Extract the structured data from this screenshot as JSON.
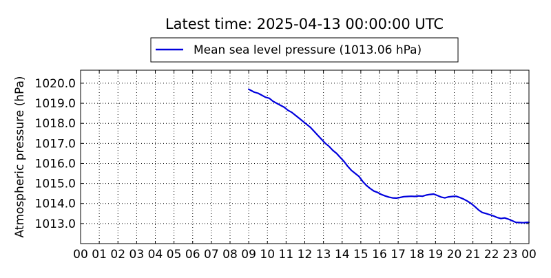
{
  "chart_data": {
    "type": "line",
    "title": "Latest time: 2025-04-13 00:00:00 UTC",
    "xlabel": "",
    "ylabel": "Atmospheric pressure (hPa)",
    "x_tick_labels": [
      "00",
      "01",
      "02",
      "03",
      "04",
      "05",
      "06",
      "07",
      "08",
      "09",
      "10",
      "11",
      "12",
      "13",
      "14",
      "15",
      "16",
      "17",
      "18",
      "19",
      "20",
      "21",
      "22",
      "23",
      "00"
    ],
    "y_ticks": [
      1013.0,
      1014.0,
      1015.0,
      1016.0,
      1017.0,
      1018.0,
      1019.0,
      1020.0
    ],
    "y_tick_labels": [
      "1013.0",
      "1014.0",
      "1015.0",
      "1016.0",
      "1017.0",
      "1018.0",
      "1019.0",
      "1020.0"
    ],
    "xlim": [
      0,
      24
    ],
    "ylim": [
      1012.0,
      1020.65
    ],
    "grid": true,
    "legend_position": "top-center",
    "series": [
      {
        "name": "Mean sea level pressure (1013.06 hPa)",
        "color": "#0000dd",
        "x": [
          9.0,
          9.1,
          9.3,
          9.5,
          9.7,
          9.9,
          10.1,
          10.3,
          10.5,
          10.7,
          10.9,
          11.1,
          11.3,
          11.5,
          11.7,
          11.9,
          12.1,
          12.3,
          12.5,
          12.7,
          12.9,
          13.1,
          13.3,
          13.5,
          13.7,
          13.9,
          14.1,
          14.3,
          14.5,
          14.7,
          14.9,
          15.1,
          15.3,
          15.5,
          15.7,
          15.9,
          16.1,
          16.3,
          16.5,
          16.7,
          16.9,
          17.1,
          17.3,
          17.5,
          17.7,
          17.9,
          18.1,
          18.3,
          18.5,
          18.7,
          18.9,
          19.1,
          19.3,
          19.5,
          19.7,
          19.9,
          20.1,
          20.3,
          20.5,
          20.7,
          20.9,
          21.1,
          21.3,
          21.5,
          21.7,
          21.9,
          22.1,
          22.3,
          22.5,
          22.7,
          22.9,
          23.1,
          23.3,
          23.5,
          23.7,
          23.9,
          24.0
        ],
        "values": [
          1019.7,
          1019.65,
          1019.55,
          1019.5,
          1019.4,
          1019.3,
          1019.25,
          1019.1,
          1019.0,
          1018.9,
          1018.8,
          1018.65,
          1018.55,
          1018.4,
          1018.25,
          1018.1,
          1017.95,
          1017.8,
          1017.6,
          1017.4,
          1017.2,
          1017.0,
          1016.85,
          1016.65,
          1016.5,
          1016.3,
          1016.1,
          1015.85,
          1015.65,
          1015.5,
          1015.35,
          1015.1,
          1014.9,
          1014.75,
          1014.62,
          1014.55,
          1014.45,
          1014.38,
          1014.32,
          1014.28,
          1014.27,
          1014.3,
          1014.34,
          1014.35,
          1014.36,
          1014.35,
          1014.38,
          1014.36,
          1014.42,
          1014.45,
          1014.47,
          1014.4,
          1014.32,
          1014.28,
          1014.33,
          1014.35,
          1014.36,
          1014.3,
          1014.22,
          1014.12,
          1014.0,
          1013.85,
          1013.68,
          1013.55,
          1013.5,
          1013.44,
          1013.38,
          1013.3,
          1013.25,
          1013.28,
          1013.22,
          1013.14,
          1013.06,
          1013.05,
          1013.04,
          1013.06,
          1013.06
        ]
      }
    ]
  }
}
